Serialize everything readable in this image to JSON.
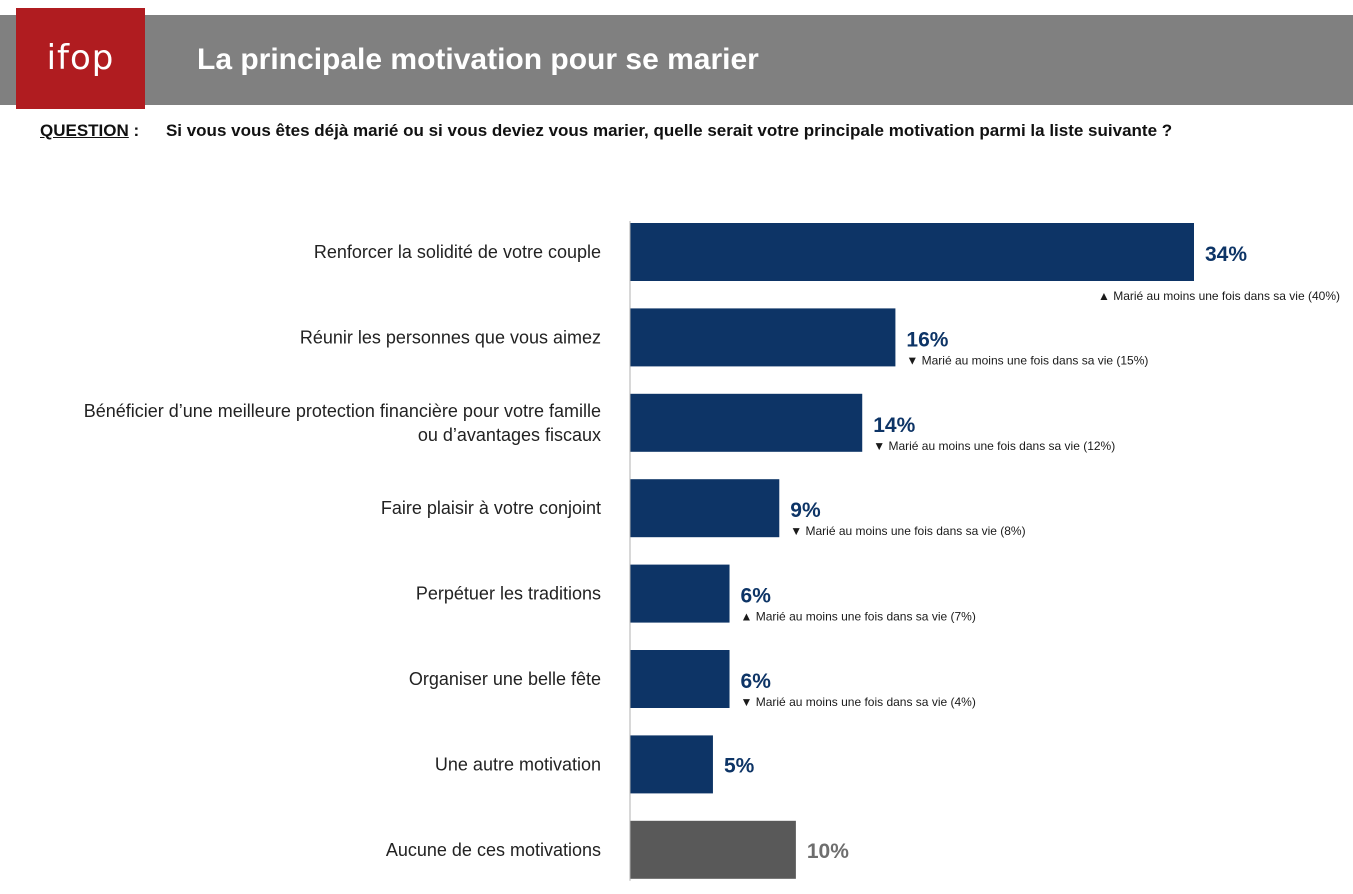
{
  "header": {
    "logo_text": "ifop",
    "title": "La principale motivation pour se marier",
    "question_label": "QUESTION",
    "question_separator": ":",
    "question_text": "Si vous vous êtes déjà marié ou si vous deviez vous marier, quelle serait votre principale motivation parmi la liste suivante ?"
  },
  "colors": {
    "header_band": "#808080",
    "logo_background": "#b01c20",
    "bar_primary": "#0d3466",
    "bar_none": "#595959",
    "value_primary": "#0d3466",
    "value_none": "#6e6e6e"
  },
  "chart_data": {
    "type": "bar",
    "orientation": "horizontal",
    "unit": "%",
    "xlim": [
      0,
      34
    ],
    "grid": false,
    "legend": "none",
    "categories": [
      [
        "Renforcer la solidité de votre couple"
      ],
      [
        "Réunir les personnes que vous aimez"
      ],
      [
        "Bénéficier d’une meilleure protection financière pour votre famille",
        "ou d’avantages fiscaux"
      ],
      [
        "Faire plaisir à votre conjoint"
      ],
      [
        "Perpétuer les traditions"
      ],
      [
        "Organiser une belle fête"
      ],
      [
        "Une autre motivation"
      ],
      [
        "Aucune de ces motivations"
      ]
    ],
    "values": [
      34,
      16,
      14,
      9,
      6,
      6,
      5,
      10
    ],
    "value_labels": [
      "34%",
      "16%",
      "14%",
      "9%",
      "6%",
      "6%",
      "5%",
      "10%"
    ],
    "highlight_none_index": 7,
    "annotations": [
      {
        "direction": "up",
        "symbol": "▲",
        "text": "Marié au moins une fois dans sa vie (40%)"
      },
      {
        "direction": "down",
        "symbol": "▼",
        "text": "Marié au moins une fois dans sa vie (15%)"
      },
      {
        "direction": "down",
        "symbol": "▼",
        "text": "Marié au moins une fois dans sa vie (12%)"
      },
      {
        "direction": "down",
        "symbol": "▼",
        "text": "Marié au moins une fois dans sa vie (8%)"
      },
      {
        "direction": "up",
        "symbol": "▲",
        "text": "Marié au moins une fois dans sa vie (7%)"
      },
      {
        "direction": "down",
        "symbol": "▼",
        "text": "Marié au moins une fois dans sa vie (4%)"
      },
      null,
      null
    ]
  }
}
